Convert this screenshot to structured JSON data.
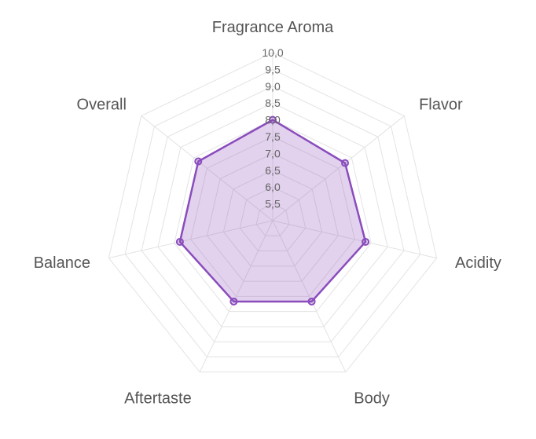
{
  "chart_data": {
    "type": "radar",
    "axes": [
      "Fragrance Aroma",
      "Flavor",
      "Acidity",
      "Body",
      "Aftertaste",
      "Balance",
      "Overall"
    ],
    "series": [
      {
        "values": [
          8.0,
          7.75,
          7.83,
          7.67,
          7.67,
          7.83,
          7.83
        ]
      }
    ],
    "range": [
      5.0,
      10.0
    ],
    "tick_step": 0.5,
    "tick_labels": [
      "5,5",
      "6,0",
      "6,5",
      "7,0",
      "7,5",
      "8,0",
      "8,5",
      "9,0",
      "9,5",
      "10,0"
    ],
    "grid": true,
    "legend": "none"
  },
  "colors": {
    "line": "#8a4cbc",
    "fill": "rgba(138,76,188,0.25)",
    "grid": "#e3e3e3"
  }
}
